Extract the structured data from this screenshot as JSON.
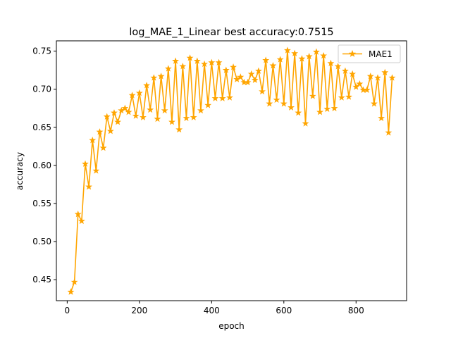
{
  "chart_data": {
    "type": "line",
    "title": "log_MAE_1_Linear best accuracy:0.7515",
    "xlabel": "epoch",
    "ylabel": "accuracy",
    "xlim": [
      -30,
      940
    ],
    "ylim": [
      0.4225,
      0.7635
    ],
    "xticks": [
      0,
      200,
      400,
      600,
      800
    ],
    "yticks": [
      0.45,
      0.5,
      0.55,
      0.6,
      0.65,
      0.7,
      0.75
    ],
    "ytick_labels": [
      "0.45",
      "0.50",
      "0.55",
      "0.60",
      "0.65",
      "0.70",
      "0.75"
    ],
    "grid": false,
    "legend_position": "top-right",
    "series": [
      {
        "name": "MAE1",
        "color": "#ffa500",
        "marker": "star",
        "x": [
          10,
          20,
          30,
          40,
          50,
          60,
          70,
          80,
          90,
          100,
          110,
          120,
          130,
          140,
          150,
          160,
          170,
          180,
          190,
          200,
          210,
          220,
          230,
          240,
          250,
          260,
          270,
          280,
          290,
          300,
          310,
          320,
          330,
          340,
          350,
          360,
          370,
          380,
          390,
          400,
          410,
          420,
          430,
          440,
          450,
          460,
          470,
          480,
          490,
          500,
          510,
          520,
          530,
          540,
          550,
          560,
          570,
          580,
          590,
          600,
          610,
          620,
          630,
          640,
          650,
          660,
          670,
          680,
          690,
          700,
          710,
          720,
          730,
          740,
          750,
          760,
          770,
          780,
          790,
          800,
          810,
          820,
          830,
          840,
          850,
          860,
          870,
          880,
          890,
          900
        ],
        "y": [
          0.434,
          0.447,
          0.536,
          0.527,
          0.602,
          0.572,
          0.633,
          0.593,
          0.644,
          0.623,
          0.664,
          0.645,
          0.669,
          0.657,
          0.672,
          0.675,
          0.67,
          0.692,
          0.665,
          0.695,
          0.663,
          0.705,
          0.673,
          0.715,
          0.661,
          0.717,
          0.672,
          0.727,
          0.657,
          0.737,
          0.647,
          0.73,
          0.662,
          0.741,
          0.663,
          0.737,
          0.672,
          0.733,
          0.679,
          0.735,
          0.688,
          0.735,
          0.688,
          0.725,
          0.689,
          0.729,
          0.713,
          0.716,
          0.709,
          0.709,
          0.72,
          0.712,
          0.724,
          0.697,
          0.738,
          0.681,
          0.731,
          0.686,
          0.739,
          0.681,
          0.751,
          0.676,
          0.747,
          0.669,
          0.74,
          0.655,
          0.743,
          0.691,
          0.749,
          0.67,
          0.744,
          0.674,
          0.734,
          0.675,
          0.73,
          0.689,
          0.724,
          0.69,
          0.72,
          0.703,
          0.707,
          0.699,
          0.699,
          0.717,
          0.681,
          0.715,
          0.662,
          0.722,
          0.643,
          0.715
        ]
      }
    ]
  }
}
